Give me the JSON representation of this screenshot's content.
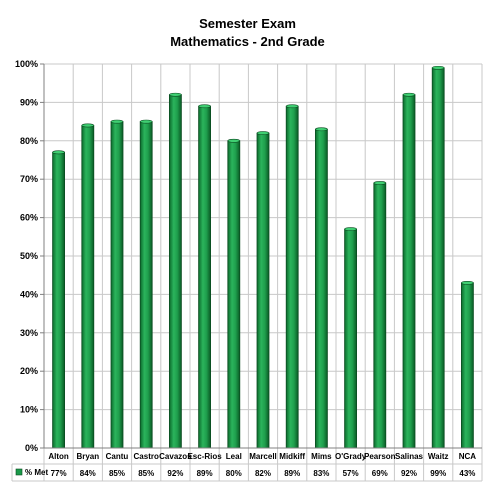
{
  "chart_data": {
    "type": "bar",
    "title": "Semester Exam",
    "subtitle": "Mathematics - 2nd Grade",
    "categories": [
      "Alton",
      "Bryan",
      "Cantu",
      "Castro",
      "Cavazos",
      "Esc-Rios",
      "Leal",
      "Marcell",
      "Midkiff",
      "Mims",
      "O'Grady",
      "Pearson",
      "Salinas",
      "Waitz",
      "NCA"
    ],
    "series": [
      {
        "name": "% Met",
        "values": [
          77,
          84,
          85,
          85,
          92,
          89,
          80,
          82,
          89,
          83,
          57,
          69,
          92,
          99,
          43
        ],
        "value_labels": [
          "77%",
          "84%",
          "85%",
          "85%",
          "92%",
          "89%",
          "80%",
          "82%",
          "89%",
          "83%",
          "57%",
          "69%",
          "92%",
          "99%",
          "43%"
        ],
        "color": "#1a9a4a"
      }
    ],
    "y_ticks": [
      0,
      10,
      20,
      30,
      40,
      50,
      60,
      70,
      80,
      90,
      100
    ],
    "y_tick_labels": [
      "0%",
      "10%",
      "20%",
      "30%",
      "40%",
      "50%",
      "60%",
      "70%",
      "80%",
      "90%",
      "100%"
    ],
    "ylim": [
      0,
      100
    ],
    "grid": true,
    "legend": "data-table-below",
    "xlabel": "",
    "ylabel": ""
  }
}
